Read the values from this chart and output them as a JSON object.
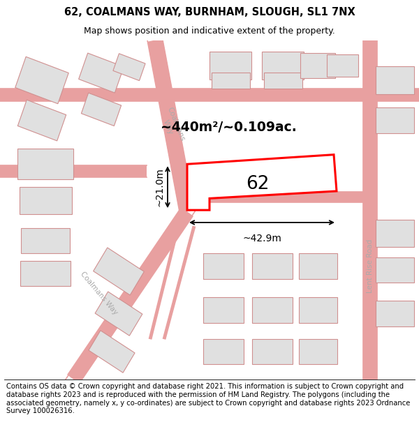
{
  "title": "62, COALMANS WAY, BURNHAM, SLOUGH, SL1 7NX",
  "subtitle": "Map shows position and indicative extent of the property.",
  "footer": "Contains OS data © Crown copyright and database right 2021. This information is subject to Crown copyright and database rights 2023 and is reproduced with the permission of HM Land Registry. The polygons (including the associated geometry, namely x, y co-ordinates) are subject to Crown copyright and database rights 2023 Ordnance Survey 100026316.",
  "bg_color": "#ffffff",
  "title_fontsize": 10.5,
  "subtitle_fontsize": 9,
  "footer_fontsize": 7.2,
  "area_label": "~440m²/~0.109ac.",
  "width_label": "~42.9m",
  "height_label": "~21.0m",
  "number_label": "62",
  "road_color": "#e8a0a0",
  "building_color": "#e0e0e0",
  "building_edge": "#d09090",
  "highlight_color": "#ff0000"
}
